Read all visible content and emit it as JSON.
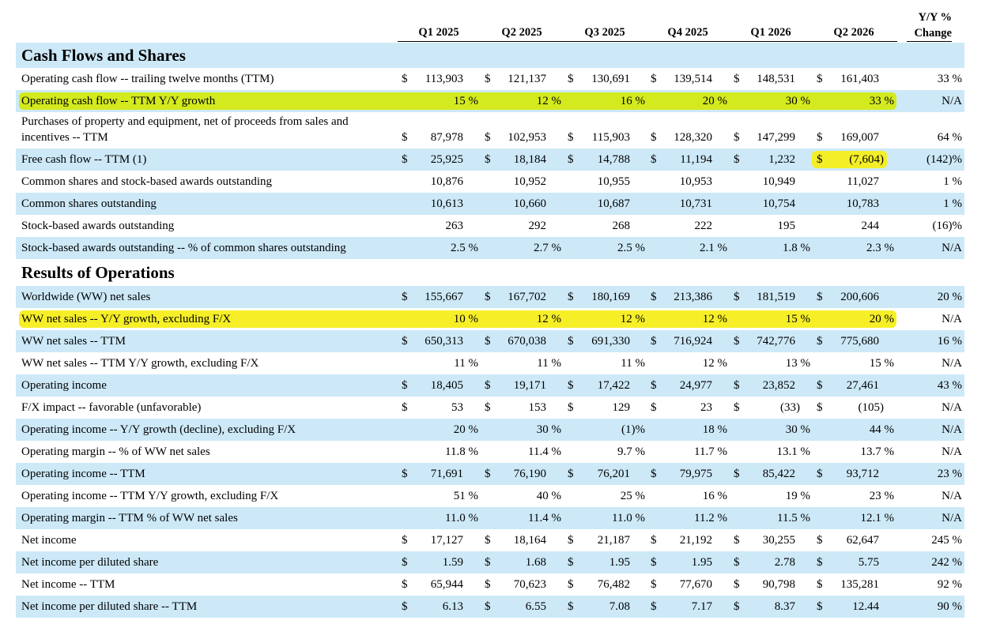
{
  "header": {
    "columns": [
      "Q1 2025",
      "Q2 2025",
      "Q3 2025",
      "Q4 2025",
      "Q1 2026",
      "Q2 2026"
    ],
    "change": [
      "Y/Y %",
      "Change"
    ]
  },
  "stripe_color": "#cde9f8",
  "sections": [
    {
      "title": "Cash Flows and Shares",
      "rows": [
        {
          "label": "Operating cash flow -- trailing twelve months (TTM)",
          "dollar": "$",
          "values": [
            "113,903",
            "121,137",
            "130,691",
            "139,514",
            "148,531",
            "161,403"
          ],
          "change": "33 %"
        },
        {
          "label": "Operating cash flow -- TTM Y/Y growth",
          "values": [
            "15 %",
            "12 %",
            "16 %",
            "20 %",
            "30 %",
            "33 %"
          ],
          "change": "N/A",
          "highlight": "#d3ea12"
        },
        {
          "label": [
            "Purchases of property and equipment, net of proceeds from sales and",
            "incentives -- TTM"
          ],
          "dollar": "$",
          "values": [
            "87,978",
            "102,953",
            "115,903",
            "128,320",
            "147,299",
            "169,007"
          ],
          "change": "64 %"
        },
        {
          "label": "Free cash flow -- TTM (1)",
          "dollar": "$",
          "values": [
            "25,925",
            "18,184",
            "14,788",
            "11,194",
            "1,232",
            "(7,604)"
          ],
          "change": "(142)%",
          "highlight_cell": 5,
          "highlight_cell_color": "#f6ee1c"
        },
        {
          "label": "Common shares and stock-based awards outstanding",
          "values": [
            "10,876",
            "10,952",
            "10,955",
            "10,953",
            "10,949",
            "11,027"
          ],
          "change": "1 %"
        },
        {
          "label": "Common shares outstanding",
          "values": [
            "10,613",
            "10,660",
            "10,687",
            "10,731",
            "10,754",
            "10,783"
          ],
          "change": "1 %"
        },
        {
          "label": "Stock-based awards outstanding",
          "values": [
            "263",
            "292",
            "268",
            "222",
            "195",
            "244"
          ],
          "change": "(16)%"
        },
        {
          "label": "Stock-based awards outstanding -- % of common shares outstanding",
          "values": [
            "2.5 %",
            "2.7 %",
            "2.5 %",
            "2.1 %",
            "1.8 %",
            "2.3 %"
          ],
          "change": "N/A"
        }
      ]
    },
    {
      "title": "Results of Operations",
      "rows": [
        {
          "label": "Worldwide (WW) net sales",
          "dollar": "$",
          "values": [
            "155,667",
            "167,702",
            "180,169",
            "213,386",
            "181,519",
            "200,606"
          ],
          "change": "20 %"
        },
        {
          "label": "WW net sales -- Y/Y growth, excluding F/X",
          "values": [
            "10 %",
            "12 %",
            "12 %",
            "12 %",
            "15 %",
            "20 %"
          ],
          "change": "N/A",
          "highlight": "#f6ee1c"
        },
        {
          "label": "WW net sales -- TTM",
          "dollar": "$",
          "values": [
            "650,313",
            "670,038",
            "691,330",
            "716,924",
            "742,776",
            "775,680"
          ],
          "change": "16 %"
        },
        {
          "label": "WW net sales -- TTM Y/Y growth, excluding F/X",
          "values": [
            "11 %",
            "11 %",
            "11 %",
            "12 %",
            "13 %",
            "15 %"
          ],
          "change": "N/A"
        },
        {
          "label": "Operating income",
          "dollar": "$",
          "values": [
            "18,405",
            "19,171",
            "17,422",
            "24,977",
            "23,852",
            "27,461"
          ],
          "change": "43 %"
        },
        {
          "label": "F/X impact -- favorable (unfavorable)",
          "dollar": "$",
          "values": [
            "53",
            "153",
            "129",
            "23",
            "(33)",
            "(105)"
          ],
          "change": "N/A"
        },
        {
          "label": "Operating income -- Y/Y growth (decline), excluding F/X",
          "values": [
            "20 %",
            "30 %",
            "(1)%",
            "18 %",
            "30 %",
            "44 %"
          ],
          "change": "N/A"
        },
        {
          "label": "Operating margin -- % of WW net sales",
          "values": [
            "11.8 %",
            "11.4 %",
            "9.7 %",
            "11.7 %",
            "13.1 %",
            "13.7 %"
          ],
          "change": "N/A"
        },
        {
          "label": "Operating income -- TTM",
          "dollar": "$",
          "values": [
            "71,691",
            "76,190",
            "76,201",
            "79,975",
            "85,422",
            "93,712"
          ],
          "change": "23 %"
        },
        {
          "label": "Operating income -- TTM Y/Y growth, excluding F/X",
          "values": [
            "51 %",
            "40 %",
            "25 %",
            "16 %",
            "19 %",
            "23 %"
          ],
          "change": "N/A"
        },
        {
          "label": "Operating margin -- TTM % of WW net sales",
          "values": [
            "11.0 %",
            "11.4 %",
            "11.0 %",
            "11.2 %",
            "11.5 %",
            "12.1 %"
          ],
          "change": "N/A"
        },
        {
          "label": "Net income",
          "dollar": "$",
          "values": [
            "17,127",
            "18,164",
            "21,187",
            "21,192",
            "30,255",
            "62,647"
          ],
          "change": "245 %"
        },
        {
          "label": "Net income per diluted share",
          "dollar": "$",
          "values": [
            "1.59",
            "1.68",
            "1.95",
            "1.95",
            "2.78",
            "5.75"
          ],
          "change": "242 %"
        },
        {
          "label": "Net income -- TTM",
          "dollar": "$",
          "values": [
            "65,944",
            "70,623",
            "76,482",
            "77,670",
            "90,798",
            "135,281"
          ],
          "change": "92 %"
        },
        {
          "label": "Net income per diluted share -- TTM",
          "dollar": "$",
          "values": [
            "6.13",
            "6.55",
            "7.08",
            "7.17",
            "8.37",
            "12.44"
          ],
          "change": "90 %"
        }
      ]
    }
  ]
}
